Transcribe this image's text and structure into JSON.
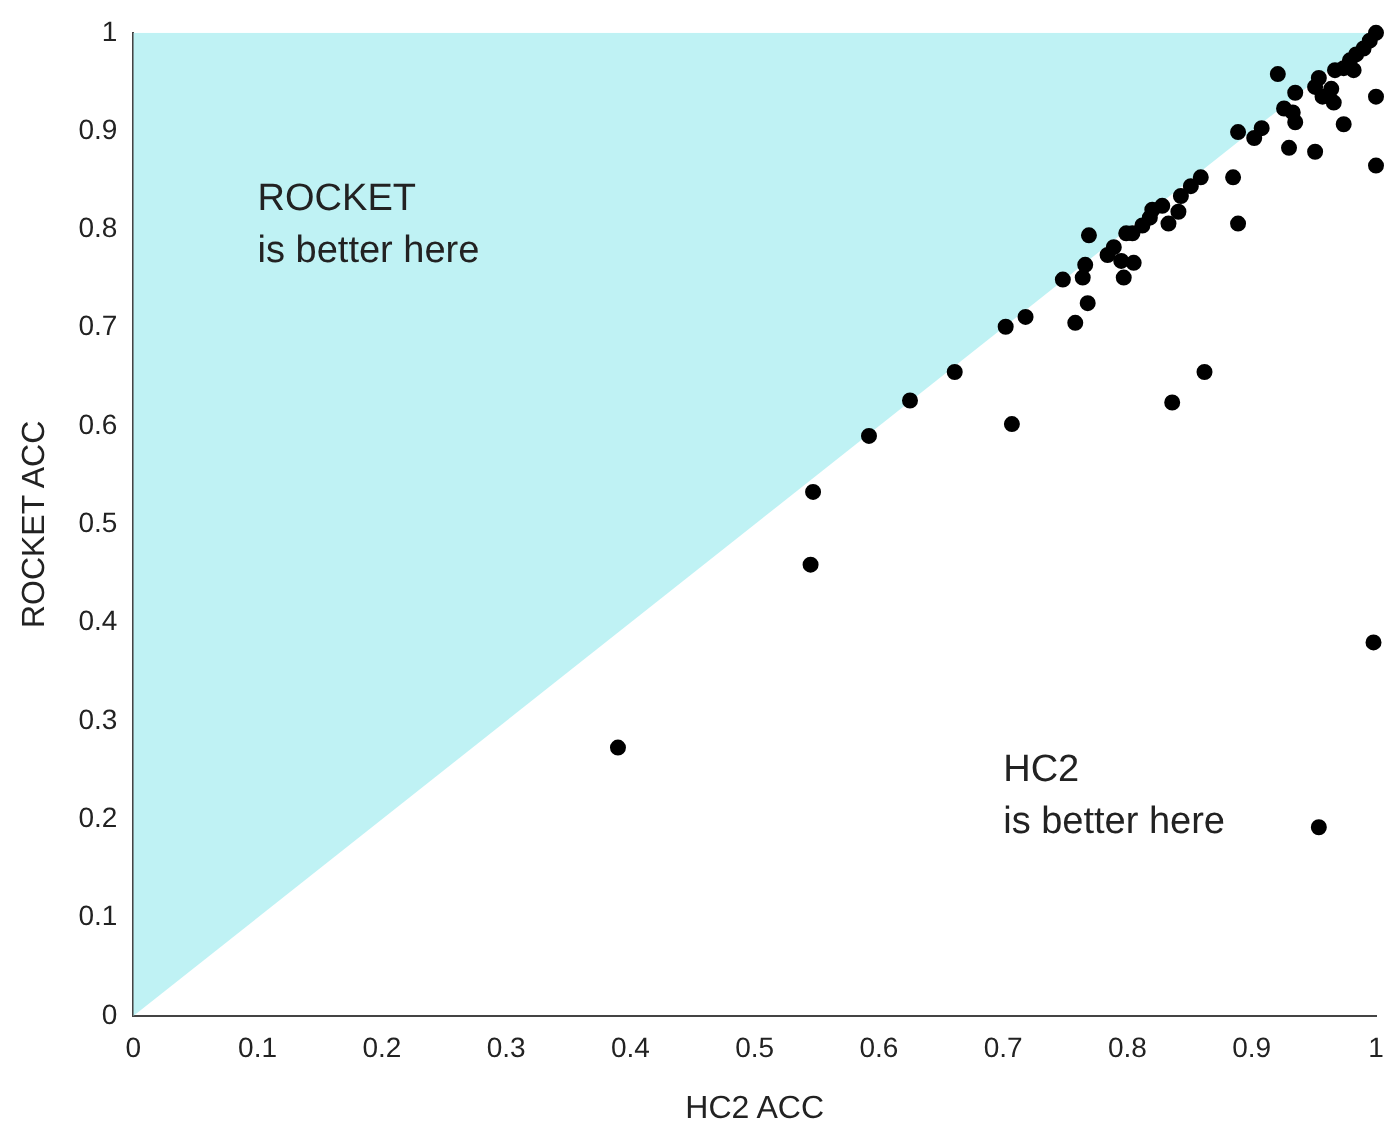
{
  "chart_data": {
    "type": "scatter",
    "xlabel": "HC2 ACC",
    "ylabel": "ROCKET ACC",
    "xlim": [
      0,
      1
    ],
    "ylim": [
      0,
      1
    ],
    "xticks": [
      0,
      0.1,
      0.2,
      0.3,
      0.4,
      0.5,
      0.6,
      0.7,
      0.8,
      0.9,
      1
    ],
    "yticks": [
      0,
      0.1,
      0.2,
      0.3,
      0.4,
      0.5,
      0.6,
      0.7,
      0.8,
      0.9,
      1
    ],
    "grid": false,
    "legend": false,
    "marker": "circle",
    "annotations": [
      "ROCKET\nis better here",
      "HC2\nis better here"
    ],
    "series": [
      {
        "type": "area",
        "marker": "none",
        "color": "#bff2f4",
        "x": [
          0,
          1
        ],
        "values": [
          0,
          1
        ]
      },
      {
        "type": "scatter",
        "color": "#000000",
        "x": [
          0.39,
          0.545,
          0.547,
          0.592,
          0.625,
          0.661,
          0.707,
          0.702,
          0.718,
          0.836,
          0.862,
          0.889,
          0.758,
          0.768,
          0.748,
          0.764,
          0.766,
          0.769,
          0.784,
          0.789,
          0.795,
          0.797,
          0.805,
          0.799,
          0.804,
          0.812,
          0.818,
          0.828,
          0.833,
          0.841,
          1,
          0.995,
          0.99,
          0.984,
          0.979,
          0.974,
          0.967,
          0.921,
          1,
          0.982,
          0.954,
          0.951,
          0.964,
          0.957,
          0.966,
          0.935,
          0.926,
          0.933,
          0.935,
          0.93,
          0.951,
          0.974,
          1,
          0.908,
          0.902,
          0.889,
          0.885,
          0.859,
          0.851,
          0.843,
          0.82,
          0.998,
          0.954
        ],
        "values": [
          0.273,
          0.459,
          0.533,
          0.59,
          0.626,
          0.655,
          0.602,
          0.701,
          0.711,
          0.624,
          0.655,
          0.806,
          0.705,
          0.725,
          0.749,
          0.751,
          0.764,
          0.794,
          0.774,
          0.782,
          0.768,
          0.751,
          0.766,
          0.796,
          0.796,
          0.804,
          0.812,
          0.824,
          0.806,
          0.818,
          1,
          0.992,
          0.984,
          0.978,
          0.972,
          0.964,
          0.962,
          0.958,
          0.935,
          0.962,
          0.954,
          0.945,
          0.943,
          0.935,
          0.929,
          0.939,
          0.923,
          0.919,
          0.909,
          0.883,
          0.879,
          0.907,
          0.865,
          0.903,
          0.893,
          0.899,
          0.853,
          0.853,
          0.844,
          0.834,
          0.82,
          0.38,
          0.192
        ]
      }
    ]
  }
}
